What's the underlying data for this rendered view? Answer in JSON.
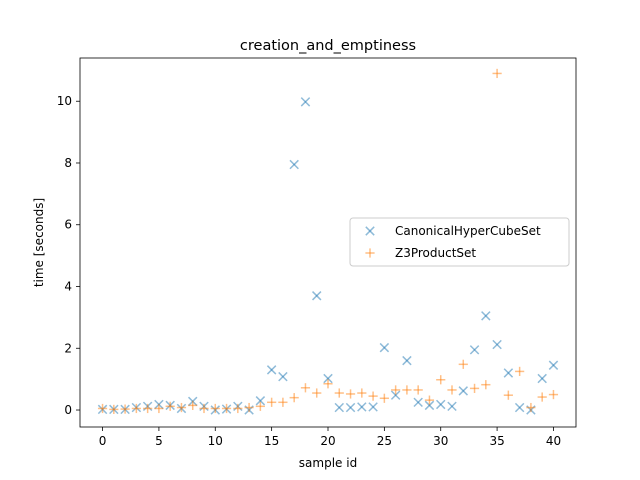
{
  "chart_data": {
    "type": "scatter",
    "title": "creation_and_emptiness",
    "xlabel": "sample id",
    "ylabel": "time [seconds]",
    "xlim": [
      -2,
      42
    ],
    "ylim": [
      -0.55,
      11.4
    ],
    "xticks": [
      0,
      5,
      10,
      15,
      20,
      25,
      30,
      35,
      40
    ],
    "yticks": [
      0,
      2,
      4,
      6,
      8,
      10
    ],
    "grid": false,
    "legend_position": "center-right",
    "series": [
      {
        "name": "CanonicalHyperCubeSet",
        "marker": "x",
        "color": "#1f77b4",
        "x": [
          0,
          1,
          2,
          3,
          4,
          5,
          6,
          7,
          8,
          9,
          10,
          11,
          12,
          13,
          14,
          15,
          16,
          17,
          18,
          19,
          20,
          21,
          22,
          23,
          24,
          25,
          26,
          27,
          28,
          29,
          30,
          31,
          32,
          33,
          34,
          35,
          36,
          37,
          38,
          39,
          40
        ],
        "y": [
          0.02,
          0.02,
          0.02,
          0.08,
          0.12,
          0.18,
          0.15,
          0.05,
          0.28,
          0.12,
          0.0,
          0.03,
          0.12,
          0.0,
          0.3,
          1.3,
          1.08,
          7.95,
          9.98,
          3.7,
          1.02,
          0.08,
          0.08,
          0.1,
          0.1,
          2.02,
          0.48,
          1.6,
          0.25,
          0.15,
          0.18,
          0.12,
          0.62,
          1.95,
          3.05,
          2.12,
          1.2,
          0.08,
          0.0,
          1.02,
          1.45
        ]
      },
      {
        "name": "Z3ProductSet",
        "marker": "+",
        "color": "#ff7f0e",
        "x": [
          0,
          1,
          2,
          3,
          4,
          5,
          6,
          7,
          8,
          9,
          10,
          11,
          12,
          13,
          14,
          15,
          16,
          17,
          18,
          19,
          20,
          21,
          22,
          23,
          24,
          25,
          26,
          27,
          28,
          29,
          30,
          31,
          32,
          33,
          34,
          35,
          36,
          37,
          38,
          39,
          40
        ],
        "y": [
          0.05,
          0.02,
          0.03,
          0.05,
          0.05,
          0.05,
          0.12,
          0.08,
          0.15,
          0.05,
          0.05,
          0.05,
          0.05,
          0.08,
          0.12,
          0.25,
          0.25,
          0.4,
          0.72,
          0.55,
          0.85,
          0.55,
          0.52,
          0.55,
          0.45,
          0.38,
          0.65,
          0.65,
          0.65,
          0.32,
          0.98,
          0.65,
          1.48,
          0.7,
          0.82,
          10.9,
          0.48,
          1.25,
          0.08,
          0.42,
          0.5
        ]
      }
    ]
  }
}
